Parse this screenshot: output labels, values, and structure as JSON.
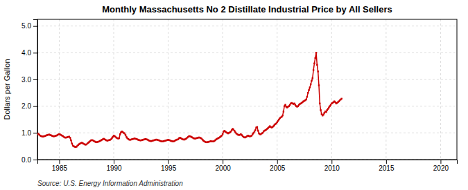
{
  "chart_data": {
    "type": "line",
    "title": "Monthly Massachusetts No 2 Distillate Industrial Price by All Sellers",
    "ylabel": "Dollars per Gallon",
    "annotations": [
      "Source: U.S. Energy Information Administration"
    ],
    "color": "#cc0000",
    "marker": "square",
    "line_style": "solid",
    "grid": true,
    "xlim": [
      1983.0,
      2021.5
    ],
    "ylim": [
      0.0,
      5.25
    ],
    "xticks": [
      1985,
      1990,
      1995,
      2000,
      2005,
      2010,
      2015,
      2020
    ],
    "yticks": [
      {
        "value": 0.0,
        "label": "0.0"
      },
      {
        "value": 1.0,
        "label": "1.0"
      },
      {
        "value": 2.0,
        "label": "2.0"
      },
      {
        "value": 3.0,
        "label": "3.0"
      },
      {
        "value": 4.0,
        "label": "4.0"
      },
      {
        "value": 5.0,
        "label": "5.0"
      }
    ],
    "x": [
      1983.0,
      1983.0833333333333,
      1983.1666666666667,
      1983.25,
      1983.3333333333333,
      1983.4166666666667,
      1983.5,
      1983.5833333333333,
      1983.6666666666667,
      1983.75,
      1983.8333333333333,
      1983.9166666666667,
      1984.0,
      1984.0833333333333,
      1984.1666666666667,
      1984.25,
      1984.3333333333333,
      1984.4166666666667,
      1984.5,
      1984.5833333333333,
      1984.6666666666667,
      1984.75,
      1984.8333333333333,
      1984.9166666666667,
      1985.0,
      1985.0833333333333,
      1985.1666666666667,
      1985.25,
      1985.3333333333333,
      1985.4166666666667,
      1985.5,
      1985.5833333333333,
      1985.6666666666667,
      1985.75,
      1985.8333333333333,
      1985.9166666666667,
      1986.0,
      1986.0833333333333,
      1986.1666666666667,
      1986.25,
      1986.3333333333333,
      1986.4166666666667,
      1986.5,
      1986.5833333333333,
      1986.6666666666667,
      1986.75,
      1986.8333333333333,
      1986.9166666666667,
      1987.0,
      1987.0833333333333,
      1987.1666666666667,
      1987.25,
      1987.3333333333333,
      1987.4166666666667,
      1987.5,
      1987.5833333333333,
      1987.6666666666667,
      1987.75,
      1987.8333333333333,
      1987.9166666666667,
      1988.0,
      1988.0833333333333,
      1988.1666666666667,
      1988.25,
      1988.3333333333333,
      1988.4166666666667,
      1988.5,
      1988.5833333333333,
      1988.6666666666667,
      1988.75,
      1988.8333333333333,
      1988.9166666666667,
      1989.0,
      1989.0833333333333,
      1989.1666666666667,
      1989.25,
      1989.3333333333333,
      1989.4166666666667,
      1989.5,
      1989.5833333333333,
      1989.6666666666667,
      1989.75,
      1989.8333333333333,
      1989.9166666666667,
      1990.0,
      1990.0833333333333,
      1990.1666666666667,
      1990.25,
      1990.3333333333333,
      1990.4166666666667,
      1990.5,
      1990.5833333333333,
      1990.6666666666667,
      1990.75,
      1990.8333333333333,
      1990.9166666666667,
      1991.0,
      1991.0833333333333,
      1991.1666666666667,
      1991.25,
      1991.3333333333333,
      1991.4166666666667,
      1991.5,
      1991.5833333333333,
      1991.6666666666667,
      1991.75,
      1991.8333333333333,
      1991.9166666666667,
      1992.0,
      1992.0833333333333,
      1992.1666666666667,
      1992.25,
      1992.3333333333333,
      1992.4166666666667,
      1992.5,
      1992.5833333333333,
      1992.6666666666667,
      1992.75,
      1992.8333333333333,
      1992.9166666666667,
      1993.0,
      1993.0833333333333,
      1993.1666666666667,
      1993.25,
      1993.3333333333333,
      1993.4166666666667,
      1993.5,
      1993.5833333333333,
      1993.6666666666667,
      1993.75,
      1993.8333333333333,
      1993.9166666666667,
      1994.0,
      1994.0833333333333,
      1994.1666666666667,
      1994.25,
      1994.3333333333333,
      1994.4166666666667,
      1994.5,
      1994.5833333333333,
      1994.6666666666667,
      1994.75,
      1994.8333333333333,
      1994.9166666666667,
      1995.0,
      1995.0833333333333,
      1995.1666666666667,
      1995.25,
      1995.3333333333333,
      1995.4166666666667,
      1995.5,
      1995.5833333333333,
      1995.6666666666667,
      1995.75,
      1995.8333333333333,
      1995.9166666666667,
      1996.0,
      1996.0833333333333,
      1996.1666666666667,
      1996.25,
      1996.3333333333333,
      1996.4166666666667,
      1996.5,
      1996.5833333333333,
      1996.6666666666667,
      1996.75,
      1996.8333333333333,
      1996.9166666666667,
      1997.0,
      1997.0833333333333,
      1997.1666666666667,
      1997.25,
      1997.3333333333333,
      1997.4166666666667,
      1997.5,
      1997.5833333333333,
      1997.6666666666667,
      1997.75,
      1997.8333333333333,
      1997.9166666666667,
      1998.0,
      1998.0833333333333,
      1998.1666666666667,
      1998.25,
      1998.3333333333333,
      1998.4166666666667,
      1998.5,
      1998.5833333333333,
      1998.6666666666667,
      1998.75,
      1998.8333333333333,
      1998.9166666666667,
      1999.0,
      1999.0833333333333,
      1999.1666666666667,
      1999.25,
      1999.3333333333333,
      1999.4166666666667,
      1999.5,
      1999.5833333333333,
      1999.6666666666667,
      1999.75,
      1999.8333333333333,
      1999.9166666666667,
      2000.0,
      2000.0833333333333,
      2000.1666666666667,
      2000.25,
      2000.3333333333333,
      2000.4166666666667,
      2000.5,
      2000.5833333333333,
      2000.6666666666667,
      2000.75,
      2000.8333333333333,
      2000.9166666666667,
      2001.0,
      2001.0833333333333,
      2001.1666666666667,
      2001.25,
      2001.3333333333333,
      2001.4166666666667,
      2001.5,
      2001.5833333333333,
      2001.6666666666667,
      2001.75,
      2001.8333333333333,
      2001.9166666666667,
      2002.0,
      2002.0833333333333,
      2002.1666666666667,
      2002.25,
      2002.3333333333333,
      2002.4166666666667,
      2002.5,
      2002.5833333333333,
      2002.6666666666667,
      2002.75,
      2002.8333333333333,
      2002.9166666666667,
      2003.0,
      2003.0833333333333,
      2003.1666666666667,
      2003.25,
      2003.3333333333333,
      2003.4166666666667,
      2003.5,
      2003.5833333333333,
      2003.6666666666667,
      2003.75,
      2003.8333333333333,
      2003.9166666666667,
      2004.0,
      2004.0833333333333,
      2004.1666666666667,
      2004.25,
      2004.3333333333333,
      2004.4166666666667,
      2004.5,
      2004.5833333333333,
      2004.6666666666667,
      2004.75,
      2004.8333333333333,
      2004.9166666666667,
      2005.0,
      2005.0833333333333,
      2005.1666666666667,
      2005.25,
      2005.3333333333333,
      2005.4166666666667,
      2005.5,
      2005.5833333333333,
      2005.6666666666667,
      2005.75,
      2005.8333333333333,
      2005.9166666666667,
      2006.0,
      2006.0833333333333,
      2006.1666666666667,
      2006.25,
      2006.3333333333333,
      2006.4166666666667,
      2006.5,
      2006.5833333333333,
      2006.6666666666667,
      2006.75,
      2006.8333333333333,
      2006.9166666666667,
      2007.0,
      2007.0833333333333,
      2007.1666666666667,
      2007.25,
      2007.3333333333333,
      2007.4166666666667,
      2007.5,
      2007.5833333333333,
      2007.6666666666667,
      2007.75,
      2007.8333333333333,
      2007.9166666666667,
      2008.0,
      2008.0833333333333,
      2008.1666666666667,
      2008.25,
      2008.3333333333333,
      2008.4166666666667,
      2008.5,
      2008.5833333333333,
      2008.6666666666667,
      2008.75,
      2008.8333333333333,
      2008.9166666666667,
      2009.0,
      2009.0833333333333,
      2009.1666666666667,
      2009.25,
      2009.3333333333333,
      2009.4166666666667,
      2009.5,
      2009.5833333333333,
      2009.6666666666667,
      2009.75,
      2009.8333333333333,
      2009.9166666666667,
      2010.0,
      2010.0833333333333,
      2010.1666666666667,
      2010.25,
      2010.3333333333333,
      2010.4166666666667,
      2010.5,
      2010.5833333333333,
      2010.6666666666667,
      2010.75,
      2010.8333333333333,
      2010.9166666666667
    ],
    "values": [
      0.95,
      0.97,
      0.93,
      0.9,
      0.88,
      0.87,
      0.86,
      0.87,
      0.88,
      0.89,
      0.91,
      0.92,
      0.93,
      0.94,
      0.92,
      0.91,
      0.89,
      0.88,
      0.87,
      0.88,
      0.89,
      0.9,
      0.92,
      0.94,
      0.95,
      0.94,
      0.92,
      0.9,
      0.88,
      0.85,
      0.83,
      0.82,
      0.83,
      0.84,
      0.85,
      0.86,
      0.82,
      0.72,
      0.6,
      0.52,
      0.5,
      0.48,
      0.47,
      0.48,
      0.52,
      0.55,
      0.58,
      0.6,
      0.62,
      0.63,
      0.61,
      0.59,
      0.57,
      0.56,
      0.57,
      0.6,
      0.63,
      0.66,
      0.69,
      0.72,
      0.73,
      0.72,
      0.7,
      0.68,
      0.66,
      0.65,
      0.66,
      0.67,
      0.68,
      0.7,
      0.72,
      0.74,
      0.76,
      0.78,
      0.76,
      0.74,
      0.72,
      0.71,
      0.72,
      0.73,
      0.74,
      0.76,
      0.8,
      0.85,
      0.9,
      0.88,
      0.85,
      0.82,
      0.8,
      0.79,
      0.8,
      0.95,
      1.02,
      1.05,
      1.03,
      1.0,
      0.98,
      0.92,
      0.85,
      0.8,
      0.77,
      0.75,
      0.74,
      0.75,
      0.76,
      0.77,
      0.78,
      0.79,
      0.78,
      0.77,
      0.76,
      0.74,
      0.73,
      0.72,
      0.72,
      0.73,
      0.74,
      0.75,
      0.76,
      0.77,
      0.76,
      0.75,
      0.73,
      0.71,
      0.7,
      0.69,
      0.7,
      0.71,
      0.72,
      0.73,
      0.74,
      0.75,
      0.74,
      0.73,
      0.72,
      0.7,
      0.69,
      0.68,
      0.68,
      0.69,
      0.7,
      0.71,
      0.72,
      0.73,
      0.74,
      0.73,
      0.72,
      0.7,
      0.69,
      0.68,
      0.68,
      0.7,
      0.72,
      0.74,
      0.75,
      0.76,
      0.8,
      0.82,
      0.8,
      0.78,
      0.76,
      0.75,
      0.75,
      0.77,
      0.79,
      0.82,
      0.85,
      0.88,
      0.87,
      0.86,
      0.84,
      0.82,
      0.8,
      0.79,
      0.79,
      0.8,
      0.81,
      0.82,
      0.83,
      0.82,
      0.8,
      0.78,
      0.74,
      0.7,
      0.68,
      0.66,
      0.65,
      0.65,
      0.66,
      0.67,
      0.68,
      0.69,
      0.68,
      0.68,
      0.68,
      0.7,
      0.73,
      0.76,
      0.78,
      0.8,
      0.82,
      0.84,
      0.87,
      0.9,
      0.95,
      1.05,
      1.08,
      1.05,
      1.02,
      1.0,
      0.98,
      1.0,
      1.02,
      1.05,
      1.1,
      1.15,
      1.12,
      1.08,
      1.02,
      0.98,
      0.95,
      0.93,
      0.92,
      0.93,
      0.95,
      0.92,
      0.88,
      0.85,
      0.83,
      0.83,
      0.85,
      0.88,
      0.9,
      0.88,
      0.87,
      0.88,
      0.9,
      0.95,
      1.0,
      1.05,
      1.1,
      1.2,
      1.22,
      1.08,
      0.98,
      0.95,
      0.95,
      0.98,
      1.0,
      1.05,
      1.08,
      1.1,
      1.12,
      1.15,
      1.18,
      1.22,
      1.25,
      1.22,
      1.2,
      1.22,
      1.25,
      1.3,
      1.33,
      1.35,
      1.4,
      1.45,
      1.5,
      1.55,
      1.58,
      1.6,
      1.65,
      1.8,
      2.0,
      2.05,
      1.98,
      1.95,
      1.98,
      2.0,
      2.05,
      2.1,
      2.12,
      2.1,
      2.08,
      2.1,
      2.05,
      2.0,
      1.98,
      2.0,
      2.05,
      2.08,
      2.1,
      2.12,
      2.15,
      2.18,
      2.2,
      2.22,
      2.25,
      2.35,
      2.5,
      2.6,
      2.7,
      2.82,
      2.95,
      3.05,
      3.35,
      3.6,
      3.8,
      4.0,
      3.55,
      3.3,
      2.78,
      2.1,
      1.85,
      1.7,
      1.65,
      1.68,
      1.75,
      1.8,
      1.78,
      1.85,
      1.9,
      1.95,
      2.0,
      2.05,
      2.1,
      2.12,
      2.15,
      2.18,
      2.15,
      2.1,
      2.12,
      2.15,
      2.18,
      2.22,
      2.25,
      2.28
    ]
  }
}
